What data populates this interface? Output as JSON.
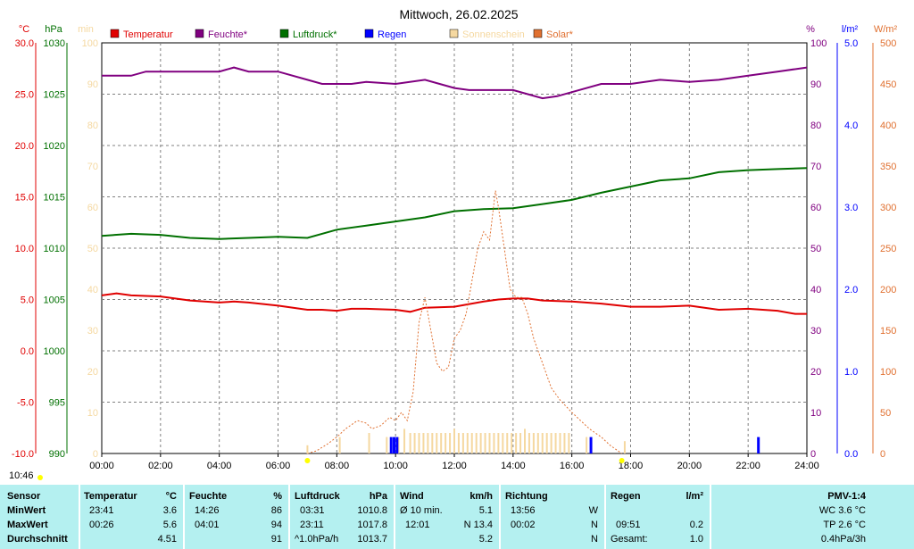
{
  "chart_data": {
    "type": "line",
    "title": "Mittwoch, 26.02.2025",
    "x_ticks": [
      "00:00",
      "02:00",
      "04:00",
      "06:00",
      "08:00",
      "10:00",
      "12:00",
      "14:00",
      "16:00",
      "18:00",
      "20:00",
      "22:00",
      "24:00"
    ],
    "x_range_hours": [
      0,
      24
    ],
    "grid": true,
    "legend_position": "top",
    "axes": {
      "temp": {
        "unit": "°C",
        "range": [
          -10,
          30
        ],
        "ticks": [
          "30.0",
          "25.0",
          "20.0",
          "15.0",
          "10.0",
          "5.0",
          "0.0",
          "-5.0",
          "-10.0"
        ],
        "color": "#e00000"
      },
      "pressure": {
        "unit": "hPa",
        "range": [
          990,
          1030
        ],
        "ticks": [
          "1030",
          "1025",
          "1020",
          "1015",
          "1010",
          "1005",
          "1000",
          "995",
          "990"
        ],
        "color": "#007000"
      },
      "sunshine": {
        "unit": "min",
        "range": [
          0,
          100
        ],
        "ticks": [
          "100",
          "90",
          "80",
          "70",
          "60",
          "50",
          "40",
          "30",
          "20",
          "10",
          "0"
        ],
        "color": "#f5d8a0"
      },
      "humidity": {
        "unit": "%",
        "range": [
          0,
          100
        ],
        "ticks": [
          "100",
          "90",
          "80",
          "70",
          "60",
          "50",
          "40",
          "30",
          "20",
          "10",
          "0"
        ],
        "color": "#800080"
      },
      "rain": {
        "unit": "l/m²",
        "range": [
          0,
          5
        ],
        "ticks": [
          "5.0",
          "4.0",
          "3.0",
          "2.0",
          "1.0",
          "0.0"
        ],
        "color": "#0000ff"
      },
      "solar": {
        "unit": "W/m²",
        "range": [
          0,
          500
        ],
        "ticks": [
          "500",
          "450",
          "400",
          "350",
          "300",
          "250",
          "200",
          "150",
          "100",
          "50",
          "0"
        ],
        "color": "#e07030"
      }
    },
    "series": [
      {
        "name": "Temperatur",
        "color": "#e00000",
        "axis": "temp",
        "points": [
          [
            0,
            5.4
          ],
          [
            0.5,
            5.6
          ],
          [
            1,
            5.4
          ],
          [
            2,
            5.3
          ],
          [
            3,
            4.9
          ],
          [
            4,
            4.7
          ],
          [
            4.5,
            4.8
          ],
          [
            5,
            4.7
          ],
          [
            6,
            4.4
          ],
          [
            7,
            4.0
          ],
          [
            7.5,
            4.0
          ],
          [
            8,
            3.9
          ],
          [
            8.5,
            4.1
          ],
          [
            9,
            4.1
          ],
          [
            10,
            4.0
          ],
          [
            10.5,
            3.8
          ],
          [
            11,
            4.2
          ],
          [
            12,
            4.3
          ],
          [
            13,
            4.8
          ],
          [
            13.5,
            5.0
          ],
          [
            14,
            5.1
          ],
          [
            14.5,
            5.1
          ],
          [
            15,
            4.9
          ],
          [
            16,
            4.8
          ],
          [
            17,
            4.6
          ],
          [
            18,
            4.3
          ],
          [
            19,
            4.3
          ],
          [
            20,
            4.4
          ],
          [
            21,
            4.0
          ],
          [
            22,
            4.1
          ],
          [
            23,
            3.9
          ],
          [
            23.6,
            3.6
          ],
          [
            24,
            3.6
          ]
        ]
      },
      {
        "name": "Feuchte*",
        "color": "#800080",
        "axis": "humidity",
        "points": [
          [
            0,
            92
          ],
          [
            1,
            92
          ],
          [
            1.5,
            93
          ],
          [
            2,
            93
          ],
          [
            3,
            93
          ],
          [
            4,
            93
          ],
          [
            4.5,
            94
          ],
          [
            5,
            93
          ],
          [
            6,
            93
          ],
          [
            7,
            91
          ],
          [
            7.5,
            90
          ],
          [
            8,
            90
          ],
          [
            8.5,
            90
          ],
          [
            9,
            90.5
          ],
          [
            10,
            90
          ],
          [
            11,
            91
          ],
          [
            12,
            89
          ],
          [
            12.5,
            88.5
          ],
          [
            13,
            88.5
          ],
          [
            14,
            88.5
          ],
          [
            14.5,
            87.5
          ],
          [
            15,
            86.5
          ],
          [
            15.5,
            87
          ],
          [
            16,
            88
          ],
          [
            17,
            90
          ],
          [
            18,
            90
          ],
          [
            19,
            91
          ],
          [
            20,
            90.5
          ],
          [
            21,
            91
          ],
          [
            22,
            92
          ],
          [
            23,
            93
          ],
          [
            24,
            94
          ]
        ]
      },
      {
        "name": "Luftdruck*",
        "color": "#007000",
        "axis": "pressure",
        "points": [
          [
            0,
            1011.2
          ],
          [
            1,
            1011.4
          ],
          [
            2,
            1011.3
          ],
          [
            3,
            1011.0
          ],
          [
            4,
            1010.9
          ],
          [
            5,
            1011.0
          ],
          [
            6,
            1011.1
          ],
          [
            7,
            1011.0
          ],
          [
            8,
            1011.8
          ],
          [
            9,
            1012.2
          ],
          [
            10,
            1012.6
          ],
          [
            11,
            1013.0
          ],
          [
            12,
            1013.6
          ],
          [
            13,
            1013.8
          ],
          [
            14,
            1013.9
          ],
          [
            15,
            1014.3
          ],
          [
            16,
            1014.7
          ],
          [
            17,
            1015.4
          ],
          [
            18,
            1016.0
          ],
          [
            19,
            1016.6
          ],
          [
            20,
            1016.8
          ],
          [
            21,
            1017.4
          ],
          [
            22,
            1017.6
          ],
          [
            23,
            1017.7
          ],
          [
            24,
            1017.8
          ]
        ]
      },
      {
        "name": "Solar*",
        "color": "#e07030",
        "axis": "solar",
        "dashed": true,
        "points": [
          [
            7,
            0
          ],
          [
            7.3,
            3
          ],
          [
            7.7,
            12
          ],
          [
            8,
            20
          ],
          [
            8.3,
            30
          ],
          [
            8.7,
            40
          ],
          [
            9,
            37
          ],
          [
            9.2,
            30
          ],
          [
            9.5,
            34
          ],
          [
            9.8,
            44
          ],
          [
            10,
            40
          ],
          [
            10.2,
            50
          ],
          [
            10.4,
            40
          ],
          [
            10.6,
            75
          ],
          [
            10.8,
            160
          ],
          [
            11,
            190
          ],
          [
            11.2,
            150
          ],
          [
            11.4,
            110
          ],
          [
            11.6,
            100
          ],
          [
            11.8,
            105
          ],
          [
            12,
            140
          ],
          [
            12.2,
            150
          ],
          [
            12.4,
            170
          ],
          [
            12.8,
            250
          ],
          [
            13,
            270
          ],
          [
            13.2,
            260
          ],
          [
            13.4,
            320
          ],
          [
            13.5,
            300
          ],
          [
            13.7,
            250
          ],
          [
            13.9,
            200
          ],
          [
            14.1,
            190
          ],
          [
            14.3,
            190
          ],
          [
            14.5,
            170
          ],
          [
            14.7,
            140
          ],
          [
            15,
            110
          ],
          [
            15.3,
            80
          ],
          [
            15.6,
            65
          ],
          [
            16,
            50
          ],
          [
            16.3,
            40
          ],
          [
            16.6,
            30
          ],
          [
            17,
            20
          ],
          [
            17.3,
            10
          ],
          [
            17.7,
            0
          ]
        ]
      },
      {
        "name": "Sonnenschein",
        "color": "#f5d8a0",
        "axis": "sunshine",
        "bars": true,
        "points": [
          [
            7.0,
            2
          ],
          [
            8.1,
            4
          ],
          [
            9.1,
            5
          ],
          [
            9.7,
            4
          ],
          [
            9.85,
            4
          ],
          [
            10.1,
            4
          ],
          [
            10.3,
            6
          ],
          [
            10.5,
            5
          ],
          [
            10.65,
            5
          ],
          [
            10.8,
            5
          ],
          [
            10.95,
            5
          ],
          [
            11.1,
            5
          ],
          [
            11.25,
            5
          ],
          [
            11.4,
            5
          ],
          [
            11.55,
            5
          ],
          [
            11.7,
            5
          ],
          [
            11.85,
            5
          ],
          [
            12.0,
            6
          ],
          [
            12.15,
            5
          ],
          [
            12.3,
            5
          ],
          [
            12.45,
            5
          ],
          [
            12.6,
            5
          ],
          [
            12.75,
            5
          ],
          [
            12.9,
            5
          ],
          [
            13.05,
            5
          ],
          [
            13.2,
            5
          ],
          [
            13.35,
            5
          ],
          [
            13.5,
            5
          ],
          [
            13.65,
            5
          ],
          [
            13.8,
            5
          ],
          [
            13.95,
            5
          ],
          [
            14.1,
            5
          ],
          [
            14.25,
            5
          ],
          [
            14.4,
            6
          ],
          [
            14.55,
            5
          ],
          [
            14.7,
            5
          ],
          [
            14.85,
            5
          ],
          [
            15.0,
            5
          ],
          [
            15.15,
            5
          ],
          [
            15.3,
            5
          ],
          [
            15.45,
            5
          ],
          [
            15.6,
            5
          ],
          [
            15.75,
            5
          ],
          [
            15.9,
            5
          ],
          [
            16.5,
            4
          ],
          [
            17.8,
            3
          ]
        ]
      },
      {
        "name": "Regen",
        "color": "#0000ff",
        "axis": "rain",
        "bars": true,
        "points": [
          [
            9.85,
            0.2
          ],
          [
            9.95,
            0.2
          ],
          [
            10.05,
            0.2
          ],
          [
            16.65,
            0.2
          ],
          [
            22.35,
            0.2
          ]
        ]
      }
    ],
    "legend": [
      "Temperatur",
      "Feuchte*",
      "Luftdruck*",
      "Regen",
      "Sonnenschein",
      "Solar*"
    ]
  },
  "time_label": "10:46",
  "stats": {
    "sensor": {
      "header": "Sensor",
      "rows": [
        "MinWert",
        "MaxWert",
        "Durchschnitt"
      ]
    },
    "temperatur": {
      "header": "Temperatur",
      "unit": "°C",
      "rows": [
        [
          "23:41",
          "3.6"
        ],
        [
          "00:26",
          "5.6"
        ],
        [
          "",
          "4.51"
        ]
      ]
    },
    "feuchte": {
      "header": "Feuchte",
      "unit": "%",
      "rows": [
        [
          "14:26",
          "86"
        ],
        [
          "04:01",
          "94"
        ],
        [
          "",
          "91"
        ]
      ]
    },
    "luftdruck": {
      "header": "Luftdruck",
      "unit": "hPa",
      "rows": [
        [
          "03:31",
          "1010.8"
        ],
        [
          "23:11",
          "1017.8"
        ],
        [
          "^1.0hPa/h",
          "1013.7"
        ]
      ]
    },
    "wind": {
      "header": "Wind",
      "unit": "km/h",
      "rows": [
        [
          "Ø 10 min.",
          "5.1"
        ],
        [
          "12:01",
          "N 13.4"
        ],
        [
          "",
          "5.2"
        ]
      ]
    },
    "richtung": {
      "header": "Richtung",
      "rows": [
        [
          "13:56",
          "W"
        ],
        [
          "00:02",
          "N"
        ],
        [
          "",
          "N"
        ]
      ]
    },
    "regen": {
      "header": "Regen",
      "unit": "l/m²",
      "rows": [
        [
          "",
          ""
        ],
        [
          "09:51",
          "0.2"
        ],
        [
          "Gesamt:",
          "1.0"
        ]
      ]
    },
    "pmv": {
      "header": "PMV-1:4",
      "rows": [
        "WC 3.6 °C",
        "TP 2.6 °C",
        "0.4hPa/3h"
      ]
    }
  }
}
